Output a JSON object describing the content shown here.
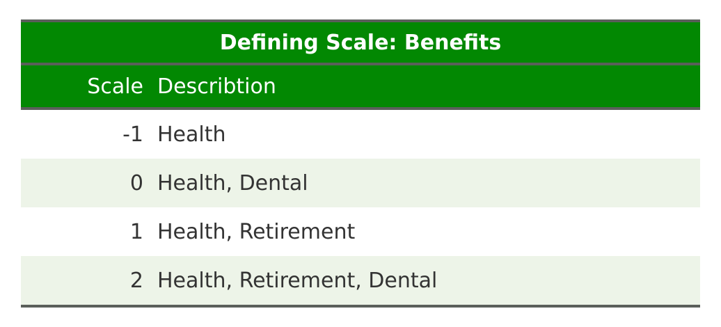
{
  "table": {
    "title": "Defining Scale: Benefits",
    "headers": {
      "scale": "Scale",
      "description": "Describtion"
    },
    "rows": [
      {
        "scale": "-1",
        "description": "Health"
      },
      {
        "scale": "0",
        "description": "Health, Dental"
      },
      {
        "scale": "1",
        "description": "Health, Retirement"
      },
      {
        "scale": "2",
        "description": "Health, Retirement, Dental"
      }
    ]
  },
  "colors": {
    "header_bg": "#028802",
    "header_text": "#ffffff",
    "rule": "#5a5f5a",
    "alt_row_bg": "#edf4e8",
    "body_text": "#333333"
  }
}
